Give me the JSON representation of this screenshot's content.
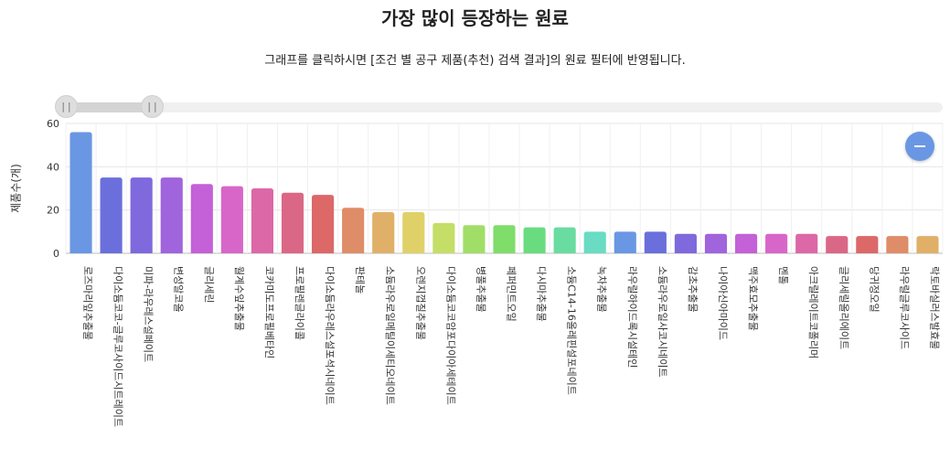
{
  "header": {
    "title": "가장 많이 등장하는 원료",
    "subtitle": "그래프를 클릭하시면 [조건 별 공구 제품(추천) 검색 결과]의 원료 필터에 반영됩니다."
  },
  "slider": {
    "left_handle_glyph": "||",
    "right_handle_glyph": "||",
    "range_fraction": [
      0.0,
      0.1
    ]
  },
  "colors": {
    "accent": "#6a97e3",
    "bars": [
      "#6a97e3",
      "#6b6fdc",
      "#7f69dd",
      "#a064dc",
      "#c460d8",
      "#d866c9",
      "#dc68a8",
      "#db6787",
      "#dc6868",
      "#df8c68",
      "#e0b068",
      "#dfd168",
      "#c4de68",
      "#a1de68",
      "#7fdd69",
      "#69dc80",
      "#69dca0",
      "#69dcc3"
    ]
  },
  "chart_data": {
    "type": "bar",
    "title": "가장 많이 등장하는 원료",
    "subtitle": "그래프를 클릭하시면 [조건 별 공구 제품(추천) 검색 결과]의 원료 필터에 반영됩니다.",
    "xlabel": "",
    "ylabel": "제품수(개)",
    "ylim": [
      0,
      60
    ],
    "yticks": [
      0,
      20,
      40,
      60
    ],
    "grid": true,
    "categories": [
      "로즈마리잎추출물",
      "다이소듐코코-글루코사이드시트레이트",
      "미파-라우레스설페이트",
      "변성알코올",
      "글리세린",
      "월계수잎추출물",
      "코카미도프로필베타인",
      "프로필렌글라이콜",
      "다이소듐라우레스설포석시네이트",
      "판테놀",
      "소듐라우로일메틸이세티오네이트",
      "오렌지껍질추출물",
      "다이소듐코코암포다이아세테이트",
      "병풀추출물",
      "페퍼민트오일",
      "다시마추출물",
      "소듐C14-16올레핀설포네이트",
      "녹차추출물",
      "라우릴하이드록시설테인",
      "소듐라우로일사코시네이트",
      "감초추출물",
      "나이아신아마이드",
      "맥주효모추출물",
      "멘톨",
      "아크릴레이트코폴리머",
      "글리세릴올리에이트",
      "당귀정오일",
      "라우릴글루코사이드",
      "락토바실러스발효물"
    ],
    "values": [
      56,
      35,
      35,
      35,
      32,
      31,
      30,
      28,
      27,
      21,
      19,
      19,
      14,
      13,
      13,
      12,
      12,
      10,
      10,
      10,
      9,
      9,
      9,
      9,
      9,
      8,
      8,
      8,
      8
    ]
  }
}
